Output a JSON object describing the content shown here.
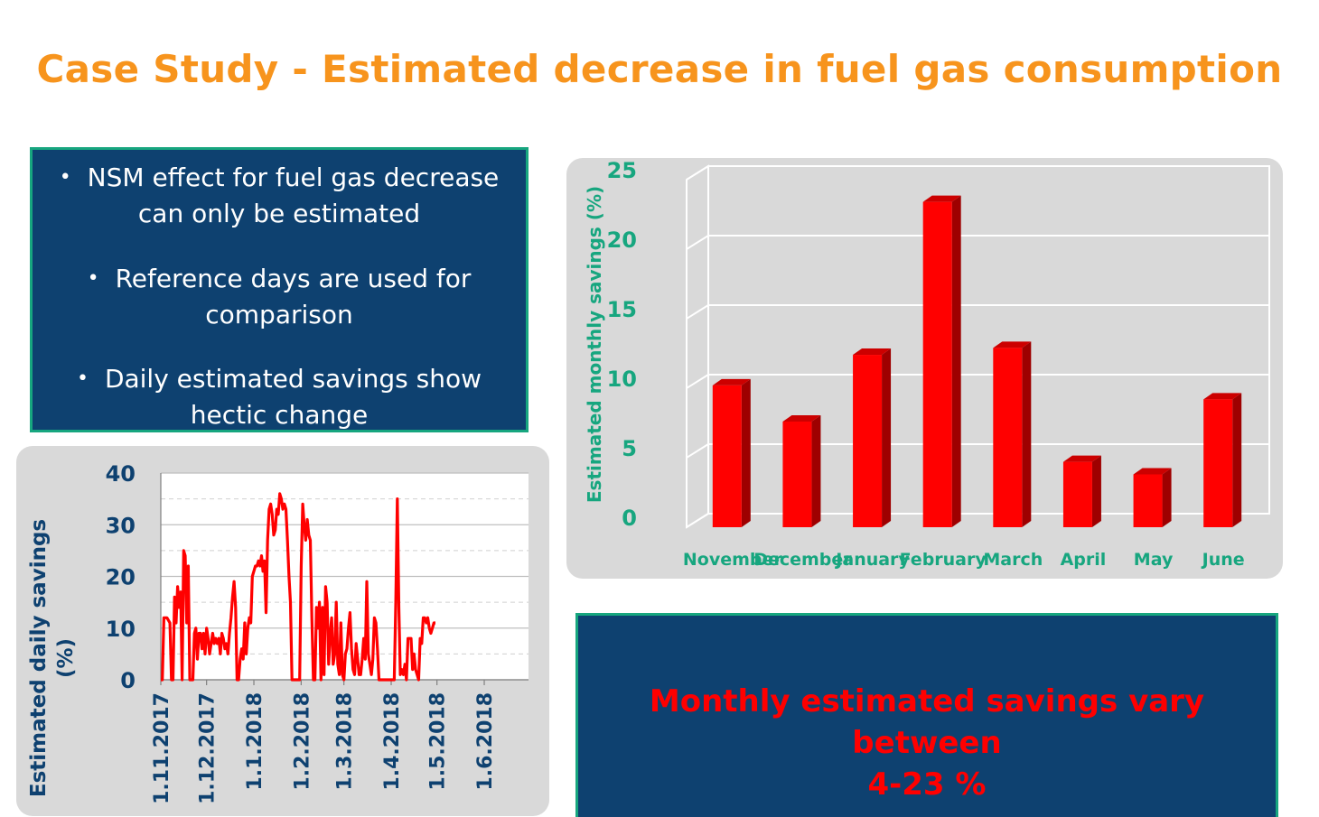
{
  "slide": {
    "title": "Case Study - Estimated decrease in fuel gas consumption",
    "bullets": [
      [
        "NSM effect for fuel gas decrease",
        "can only be estimated"
      ],
      [
        "Reference days are used for",
        "comparison"
      ],
      [
        "Daily estimated savings show",
        "hectic change"
      ]
    ],
    "summary": [
      "Monthly estimated savings vary between",
      "4-23 %"
    ]
  },
  "colors": {
    "accent_title": "#F7941D",
    "box_fill": "#0E4170",
    "box_border": "#17A67F",
    "bar": "#FF0000",
    "line": "#FF0000",
    "monthly_axis_text": "#17A67F",
    "daily_axis_text": "#0E4170"
  },
  "chart_data": [
    {
      "type": "bar",
      "ylabel": "Estimated monthly savings (%)",
      "categories": [
        "November",
        "December",
        "January",
        "February",
        "March",
        "April",
        "May",
        "June"
      ],
      "values": [
        10.2,
        7.6,
        12.4,
        23.4,
        12.9,
        4.7,
        3.8,
        9.2
      ],
      "ylim": [
        0,
        25
      ],
      "yticks": [
        0,
        5,
        10,
        15,
        20,
        25
      ],
      "grid": true,
      "legend": "none"
    },
    {
      "type": "line",
      "ylabel": "Estimated daily savings (%)",
      "ylim": [
        0,
        40
      ],
      "yticks": [
        0,
        10,
        20,
        30,
        40
      ],
      "xticks": [
        "1.11.2017",
        "1.12.2017",
        "1.1.2018",
        "1.2.2018",
        "1.3.2018",
        "1.4.2018",
        "1.5.2018",
        "1.6.2018"
      ],
      "x_range": [
        "2017-11-01",
        "2018-06-30"
      ],
      "grid": true,
      "legend": "none",
      "series": [
        {
          "points": [
            [
              "2017-11-01",
              0
            ],
            [
              "2017-11-02",
              0
            ],
            [
              "2017-11-03",
              12
            ],
            [
              "2017-11-05",
              12
            ],
            [
              "2017-11-07",
              11
            ],
            [
              "2017-11-08",
              0
            ],
            [
              "2017-11-09",
              0
            ],
            [
              "2017-11-10",
              16
            ],
            [
              "2017-11-11",
              11
            ],
            [
              "2017-11-12",
              18
            ],
            [
              "2017-11-13",
              14
            ],
            [
              "2017-11-14",
              17
            ],
            [
              "2017-11-15",
              0
            ],
            [
              "2017-11-16",
              25
            ],
            [
              "2017-11-17",
              24
            ],
            [
              "2017-11-18",
              11
            ],
            [
              "2017-11-19",
              22
            ],
            [
              "2017-11-20",
              0
            ],
            [
              "2017-11-21",
              0
            ],
            [
              "2017-11-22",
              0
            ],
            [
              "2017-11-23",
              9
            ],
            [
              "2017-11-24",
              10
            ],
            [
              "2017-11-25",
              4
            ],
            [
              "2017-11-26",
              9
            ],
            [
              "2017-11-27",
              9
            ],
            [
              "2017-11-28",
              6
            ],
            [
              "2017-11-29",
              9
            ],
            [
              "2017-11-30",
              5
            ],
            [
              "2017-12-01",
              10
            ],
            [
              "2017-12-02",
              8
            ],
            [
              "2017-12-03",
              5
            ],
            [
              "2017-12-04",
              7
            ],
            [
              "2017-12-05",
              9
            ],
            [
              "2017-12-06",
              7
            ],
            [
              "2017-12-07",
              8
            ],
            [
              "2017-12-08",
              7
            ],
            [
              "2017-12-09",
              8
            ],
            [
              "2017-12-10",
              5
            ],
            [
              "2017-12-11",
              9
            ],
            [
              "2017-12-12",
              8
            ],
            [
              "2017-12-13",
              6
            ],
            [
              "2017-12-14",
              7
            ],
            [
              "2017-12-15",
              5
            ],
            [
              "2017-12-16",
              9
            ],
            [
              "2017-12-17",
              12
            ],
            [
              "2017-12-18",
              16
            ],
            [
              "2017-12-19",
              19
            ],
            [
              "2017-12-20",
              14
            ],
            [
              "2017-12-21",
              0
            ],
            [
              "2017-12-22",
              0
            ],
            [
              "2017-12-23",
              4
            ],
            [
              "2017-12-24",
              6
            ],
            [
              "2017-12-25",
              4
            ],
            [
              "2017-12-26",
              11
            ],
            [
              "2017-12-27",
              5
            ],
            [
              "2017-12-28",
              10
            ],
            [
              "2017-12-29",
              12
            ],
            [
              "2017-12-30",
              11
            ],
            [
              "2017-12-31",
              20
            ],
            [
              "2018-01-01",
              21
            ],
            [
              "2018-01-02",
              22
            ],
            [
              "2018-01-03",
              22
            ],
            [
              "2018-01-04",
              23
            ],
            [
              "2018-01-05",
              22
            ],
            [
              "2018-01-06",
              24
            ],
            [
              "2018-01-07",
              21
            ],
            [
              "2018-01-08",
              23
            ],
            [
              "2018-01-09",
              13
            ],
            [
              "2018-01-10",
              27
            ],
            [
              "2018-01-11",
              33
            ],
            [
              "2018-01-12",
              34
            ],
            [
              "2018-01-13",
              32
            ],
            [
              "2018-01-14",
              28
            ],
            [
              "2018-01-15",
              29
            ],
            [
              "2018-01-16",
              33
            ],
            [
              "2018-01-17",
              32
            ],
            [
              "2018-01-18",
              36
            ],
            [
              "2018-01-19",
              35
            ],
            [
              "2018-01-20",
              33
            ],
            [
              "2018-01-21",
              34
            ],
            [
              "2018-01-22",
              33
            ],
            [
              "2018-01-23",
              27
            ],
            [
              "2018-01-24",
              20
            ],
            [
              "2018-01-25",
              15
            ],
            [
              "2018-01-26",
              0
            ],
            [
              "2018-01-27",
              0
            ],
            [
              "2018-01-28",
              0
            ],
            [
              "2018-01-29",
              0
            ],
            [
              "2018-01-30",
              0
            ],
            [
              "2018-01-31",
              0
            ],
            [
              "2018-02-01",
              22
            ],
            [
              "2018-02-02",
              34
            ],
            [
              "2018-02-03",
              30
            ],
            [
              "2018-02-04",
              27
            ],
            [
              "2018-02-05",
              31
            ],
            [
              "2018-02-06",
              28
            ],
            [
              "2018-02-07",
              27
            ],
            [
              "2018-02-08",
              12
            ],
            [
              "2018-02-09",
              0
            ],
            [
              "2018-02-10",
              0
            ],
            [
              "2018-02-11",
              14
            ],
            [
              "2018-02-12",
              10
            ],
            [
              "2018-02-13",
              15
            ],
            [
              "2018-02-14",
              0
            ],
            [
              "2018-02-15",
              14
            ],
            [
              "2018-02-16",
              1
            ],
            [
              "2018-02-17",
              18
            ],
            [
              "2018-02-18",
              15
            ],
            [
              "2018-02-19",
              3
            ],
            [
              "2018-02-20",
              9
            ],
            [
              "2018-02-21",
              12
            ],
            [
              "2018-02-22",
              3
            ],
            [
              "2018-02-23",
              5
            ],
            [
              "2018-02-24",
              15
            ],
            [
              "2018-02-25",
              3
            ],
            [
              "2018-02-26",
              1
            ],
            [
              "2018-02-27",
              11
            ],
            [
              "2018-02-28",
              1
            ],
            [
              "2018-03-01",
              0
            ],
            [
              "2018-03-02",
              5
            ],
            [
              "2018-03-03",
              6
            ],
            [
              "2018-03-04",
              10
            ],
            [
              "2018-03-05",
              13
            ],
            [
              "2018-03-06",
              6
            ],
            [
              "2018-03-07",
              2
            ],
            [
              "2018-03-08",
              1
            ],
            [
              "2018-03-09",
              7
            ],
            [
              "2018-03-10",
              4
            ],
            [
              "2018-03-11",
              1
            ],
            [
              "2018-03-12",
              1
            ],
            [
              "2018-03-13",
              4
            ],
            [
              "2018-03-14",
              8
            ],
            [
              "2018-03-15",
              4
            ],
            [
              "2018-03-16",
              19
            ],
            [
              "2018-03-17",
              5
            ],
            [
              "2018-03-18",
              3
            ],
            [
              "2018-03-19",
              1
            ],
            [
              "2018-03-20",
              4
            ],
            [
              "2018-03-21",
              12
            ],
            [
              "2018-03-22",
              11
            ],
            [
              "2018-03-23",
              6
            ],
            [
              "2018-03-24",
              0
            ],
            [
              "2018-03-25",
              0
            ],
            [
              "2018-03-26",
              0
            ],
            [
              "2018-03-27",
              0
            ],
            [
              "2018-03-28",
              0
            ],
            [
              "2018-03-29",
              0
            ],
            [
              "2018-03-30",
              0
            ],
            [
              "2018-03-31",
              0
            ],
            [
              "2018-04-01",
              0
            ],
            [
              "2018-04-02",
              0
            ],
            [
              "2018-04-03",
              0
            ],
            [
              "2018-04-04",
              15
            ],
            [
              "2018-04-05",
              35
            ],
            [
              "2018-04-06",
              14
            ],
            [
              "2018-04-07",
              1
            ],
            [
              "2018-04-08",
              2
            ],
            [
              "2018-04-09",
              1
            ],
            [
              "2018-04-10",
              3
            ],
            [
              "2018-04-11",
              0
            ],
            [
              "2018-04-12",
              8
            ],
            [
              "2018-04-13",
              8
            ],
            [
              "2018-04-14",
              8
            ],
            [
              "2018-04-15",
              2
            ],
            [
              "2018-04-16",
              5
            ],
            [
              "2018-04-17",
              2
            ],
            [
              "2018-04-18",
              1
            ],
            [
              "2018-04-19",
              0
            ],
            [
              "2018-04-20",
              8
            ],
            [
              "2018-04-21",
              7
            ],
            [
              "2018-04-22",
              12
            ],
            [
              "2018-04-23",
              12
            ],
            [
              "2018-04-24",
              11
            ],
            [
              "2018-04-25",
              12
            ],
            [
              "2018-04-26",
              10
            ],
            [
              "2018-04-27",
              9
            ],
            [
              "2018-04-28",
              10
            ],
            [
              "2018-04-29",
              11
            ],
            [
              "2018-04-30",
              11
            ]
          ]
        }
      ]
    }
  ]
}
